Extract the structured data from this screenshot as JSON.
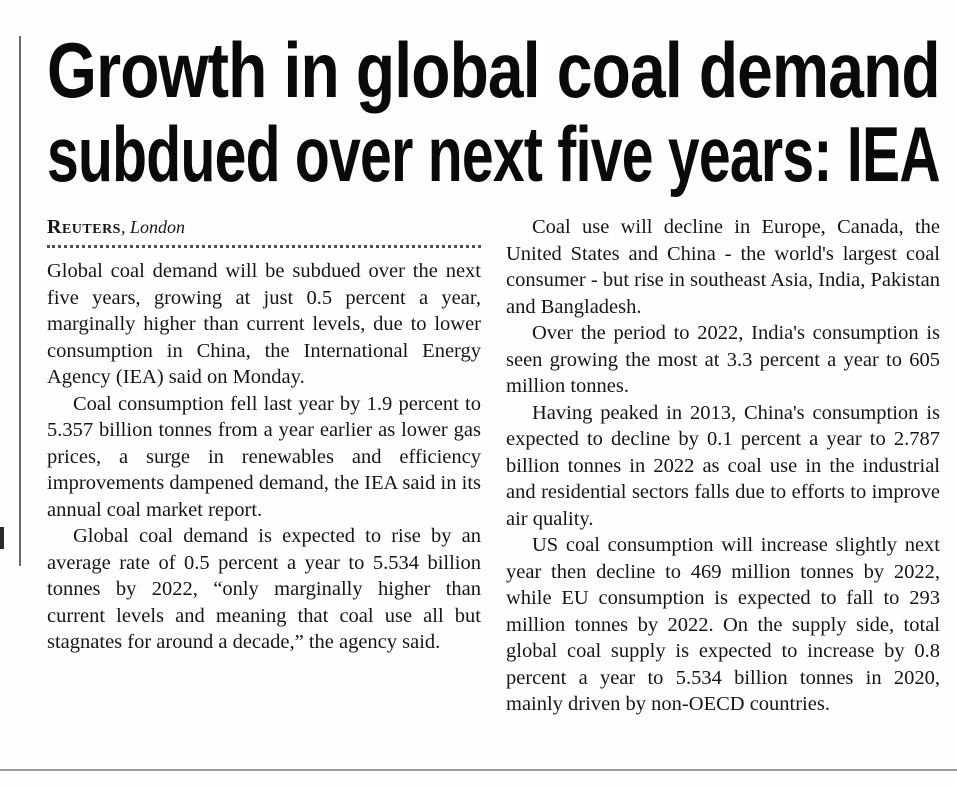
{
  "article": {
    "headline": {
      "line1": "Growth in global coal demand",
      "line2": "subdued over next five years: IEA"
    },
    "byline": {
      "source": "Reuters",
      "location": ", London"
    },
    "columns": {
      "left": [
        "Global coal demand will be subdued over the next five years, growing at just 0.5 percent a year, marginally higher than current levels, due to lower consumption in China, the International Energy Agency (IEA) said on Monday.",
        "Coal consumption fell last year by 1.9 percent to 5.357 billion tonnes from a year earlier as lower gas prices, a surge in renewables and efficiency improvements dampened demand, the IEA said in its annual coal market report.",
        "Global coal demand is expected to rise by an average rate of 0.5 percent a year to 5.534 billion tonnes by 2022, “only marginally higher than current levels and meaning that coal use all but stagnates for around a decade,” the agency said."
      ],
      "right": [
        "Coal use will decline in Europe, Canada, the United States and China - the world's largest coal consumer - but rise in southeast Asia, India, Pakistan and Bangladesh.",
        "Over the period to 2022, India's consumption is seen growing the most at 3.3 percent a year to 605 million tonnes.",
        "Having peaked in 2013, China's consumption is expected to decline by 0.1 percent a year to 2.787 billion tonnes in 2022 as coal use in the industrial and residential sectors falls due to efforts to improve air quality.",
        "US coal consumption will increase slightly next year then decline to 469 million tonnes by 2022, while EU consumption is expected to fall to 293 million tonnes by 2022. On the supply side, total global coal supply is expected to increase by 0.8 percent a year to 5.534 billion tonnes in 2020, mainly driven by non-OECD countries."
      ]
    }
  }
}
